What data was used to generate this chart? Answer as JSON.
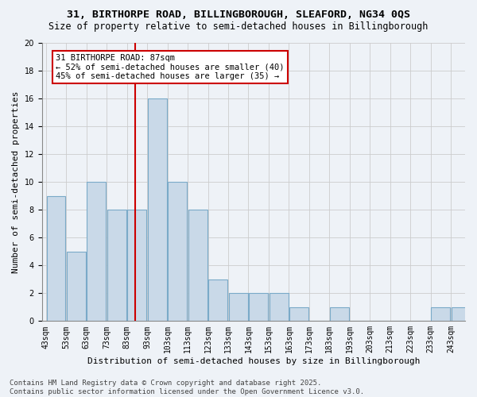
{
  "title": "31, BIRTHORPE ROAD, BILLINGBOROUGH, SLEAFORD, NG34 0QS",
  "subtitle": "Size of property relative to semi-detached houses in Billingborough",
  "xlabel": "Distribution of semi-detached houses by size in Billingborough",
  "ylabel": "Number of semi-detached properties",
  "bins": [
    43,
    53,
    63,
    73,
    83,
    93,
    103,
    113,
    123,
    133,
    143,
    153,
    163,
    173,
    183,
    193,
    203,
    213,
    223,
    233,
    243,
    253
  ],
  "counts": [
    9,
    5,
    10,
    8,
    8,
    16,
    10,
    8,
    3,
    2,
    2,
    2,
    1,
    0,
    1,
    0,
    0,
    0,
    0,
    1,
    1
  ],
  "bar_color": "#c9d9e8",
  "bar_edge_color": "#7aaac8",
  "vline_x": 87,
  "vline_color": "#cc0000",
  "annotation_text": "31 BIRTHORPE ROAD: 87sqm\n← 52% of semi-detached houses are smaller (40)\n45% of semi-detached houses are larger (35) →",
  "annotation_box_color": "#ffffff",
  "annotation_box_edge": "#cc0000",
  "ylim": [
    0,
    20
  ],
  "yticks": [
    0,
    2,
    4,
    6,
    8,
    10,
    12,
    14,
    16,
    18,
    20
  ],
  "grid_color": "#cccccc",
  "bg_color": "#eef2f7",
  "footer": "Contains HM Land Registry data © Crown copyright and database right 2025.\nContains public sector information licensed under the Open Government Licence v3.0.",
  "title_fontsize": 9.5,
  "subtitle_fontsize": 8.5,
  "xlabel_fontsize": 8,
  "ylabel_fontsize": 8,
  "tick_fontsize": 7,
  "annotation_fontsize": 7.5,
  "footer_fontsize": 6.5
}
